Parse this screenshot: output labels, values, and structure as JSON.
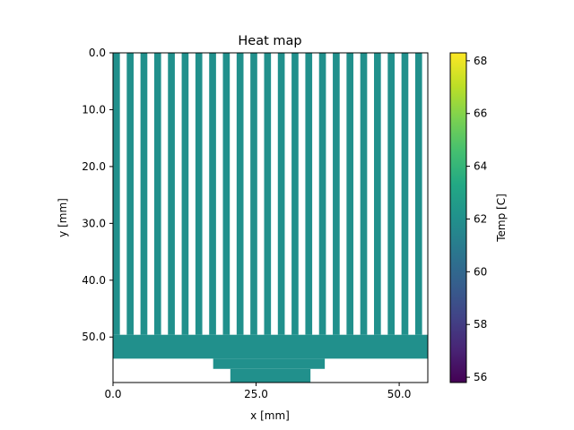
{
  "chart_data": {
    "type": "heatmap",
    "title": "Heat map",
    "xlabel": "x [mm]",
    "ylabel": "y [mm]",
    "xlim": [
      0,
      55
    ],
    "ylim": [
      58,
      0
    ],
    "x_ticks": [
      0.0,
      25.0,
      50.0
    ],
    "x_tick_labels": [
      "0.0",
      "25.0",
      "50.0"
    ],
    "y_ticks": [
      0.0,
      10.0,
      20.0,
      30.0,
      40.0,
      50.0
    ],
    "y_tick_labels": [
      "0.0",
      "10.0",
      "20.0",
      "30.0",
      "40.0",
      "50.0"
    ],
    "colorbar": {
      "label": "Temp [C]",
      "range": [
        55.8,
        68.3
      ],
      "ticks": [
        56,
        58,
        60,
        62,
        64,
        66,
        68
      ],
      "tick_labels": [
        "56",
        "58",
        "60",
        "62",
        "64",
        "66",
        "68"
      ],
      "colormap": "viridis"
    },
    "uniform_value": 62.0,
    "fins": {
      "count": 23,
      "x_start": 0,
      "pitch": 2.4,
      "width": 1.2,
      "y_top": 0,
      "y_bottom": 49.6
    },
    "regions": [
      {
        "name": "base-plate",
        "x": [
          0,
          55
        ],
        "y": [
          49.6,
          53.8
        ],
        "value": 62.0
      },
      {
        "name": "step-upper",
        "x": [
          17.5,
          37.0
        ],
        "y": [
          53.8,
          55.6
        ],
        "value": 62.0
      },
      {
        "name": "step-lower",
        "x": [
          20.5,
          34.5
        ],
        "y": [
          55.6,
          58.0
        ],
        "value": 62.0
      }
    ],
    "grid": false,
    "legend": "none"
  }
}
